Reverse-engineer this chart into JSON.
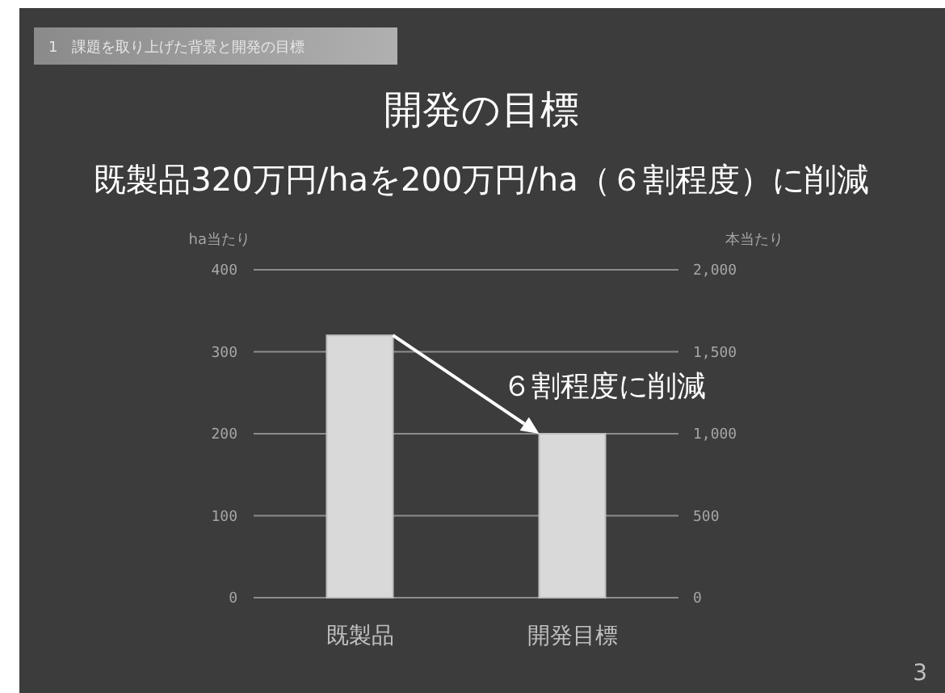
{
  "chart_data": {
    "type": "bar",
    "title": "開発の目標",
    "subtitle": "既製品320万円/haを200万円/ha（６割程度）に削減",
    "categories": [
      "既製品",
      "開発目標"
    ],
    "values": [
      320,
      200
    ],
    "color": "#d9d9d9",
    "ylabel": "ha当たり",
    "y2label": "本当たり",
    "ylim": [
      0,
      400
    ],
    "yticks": [
      0,
      100,
      200,
      300,
      400
    ],
    "y2lim": [
      0,
      2000
    ],
    "y2ticks": [
      0,
      500,
      {
        "value": 1000,
        "label": "1,000"
      },
      {
        "value": 1500,
        "label": "1,500"
      },
      {
        "value": 2000,
        "label": "2,000"
      }
    ],
    "grid": "y",
    "annotations": [
      "1　課題を取り上げた背景と開発の目標",
      {
        "text": "６割程度に削減",
        "x": "開発目標",
        "y": 200
      },
      "3"
    ]
  }
}
